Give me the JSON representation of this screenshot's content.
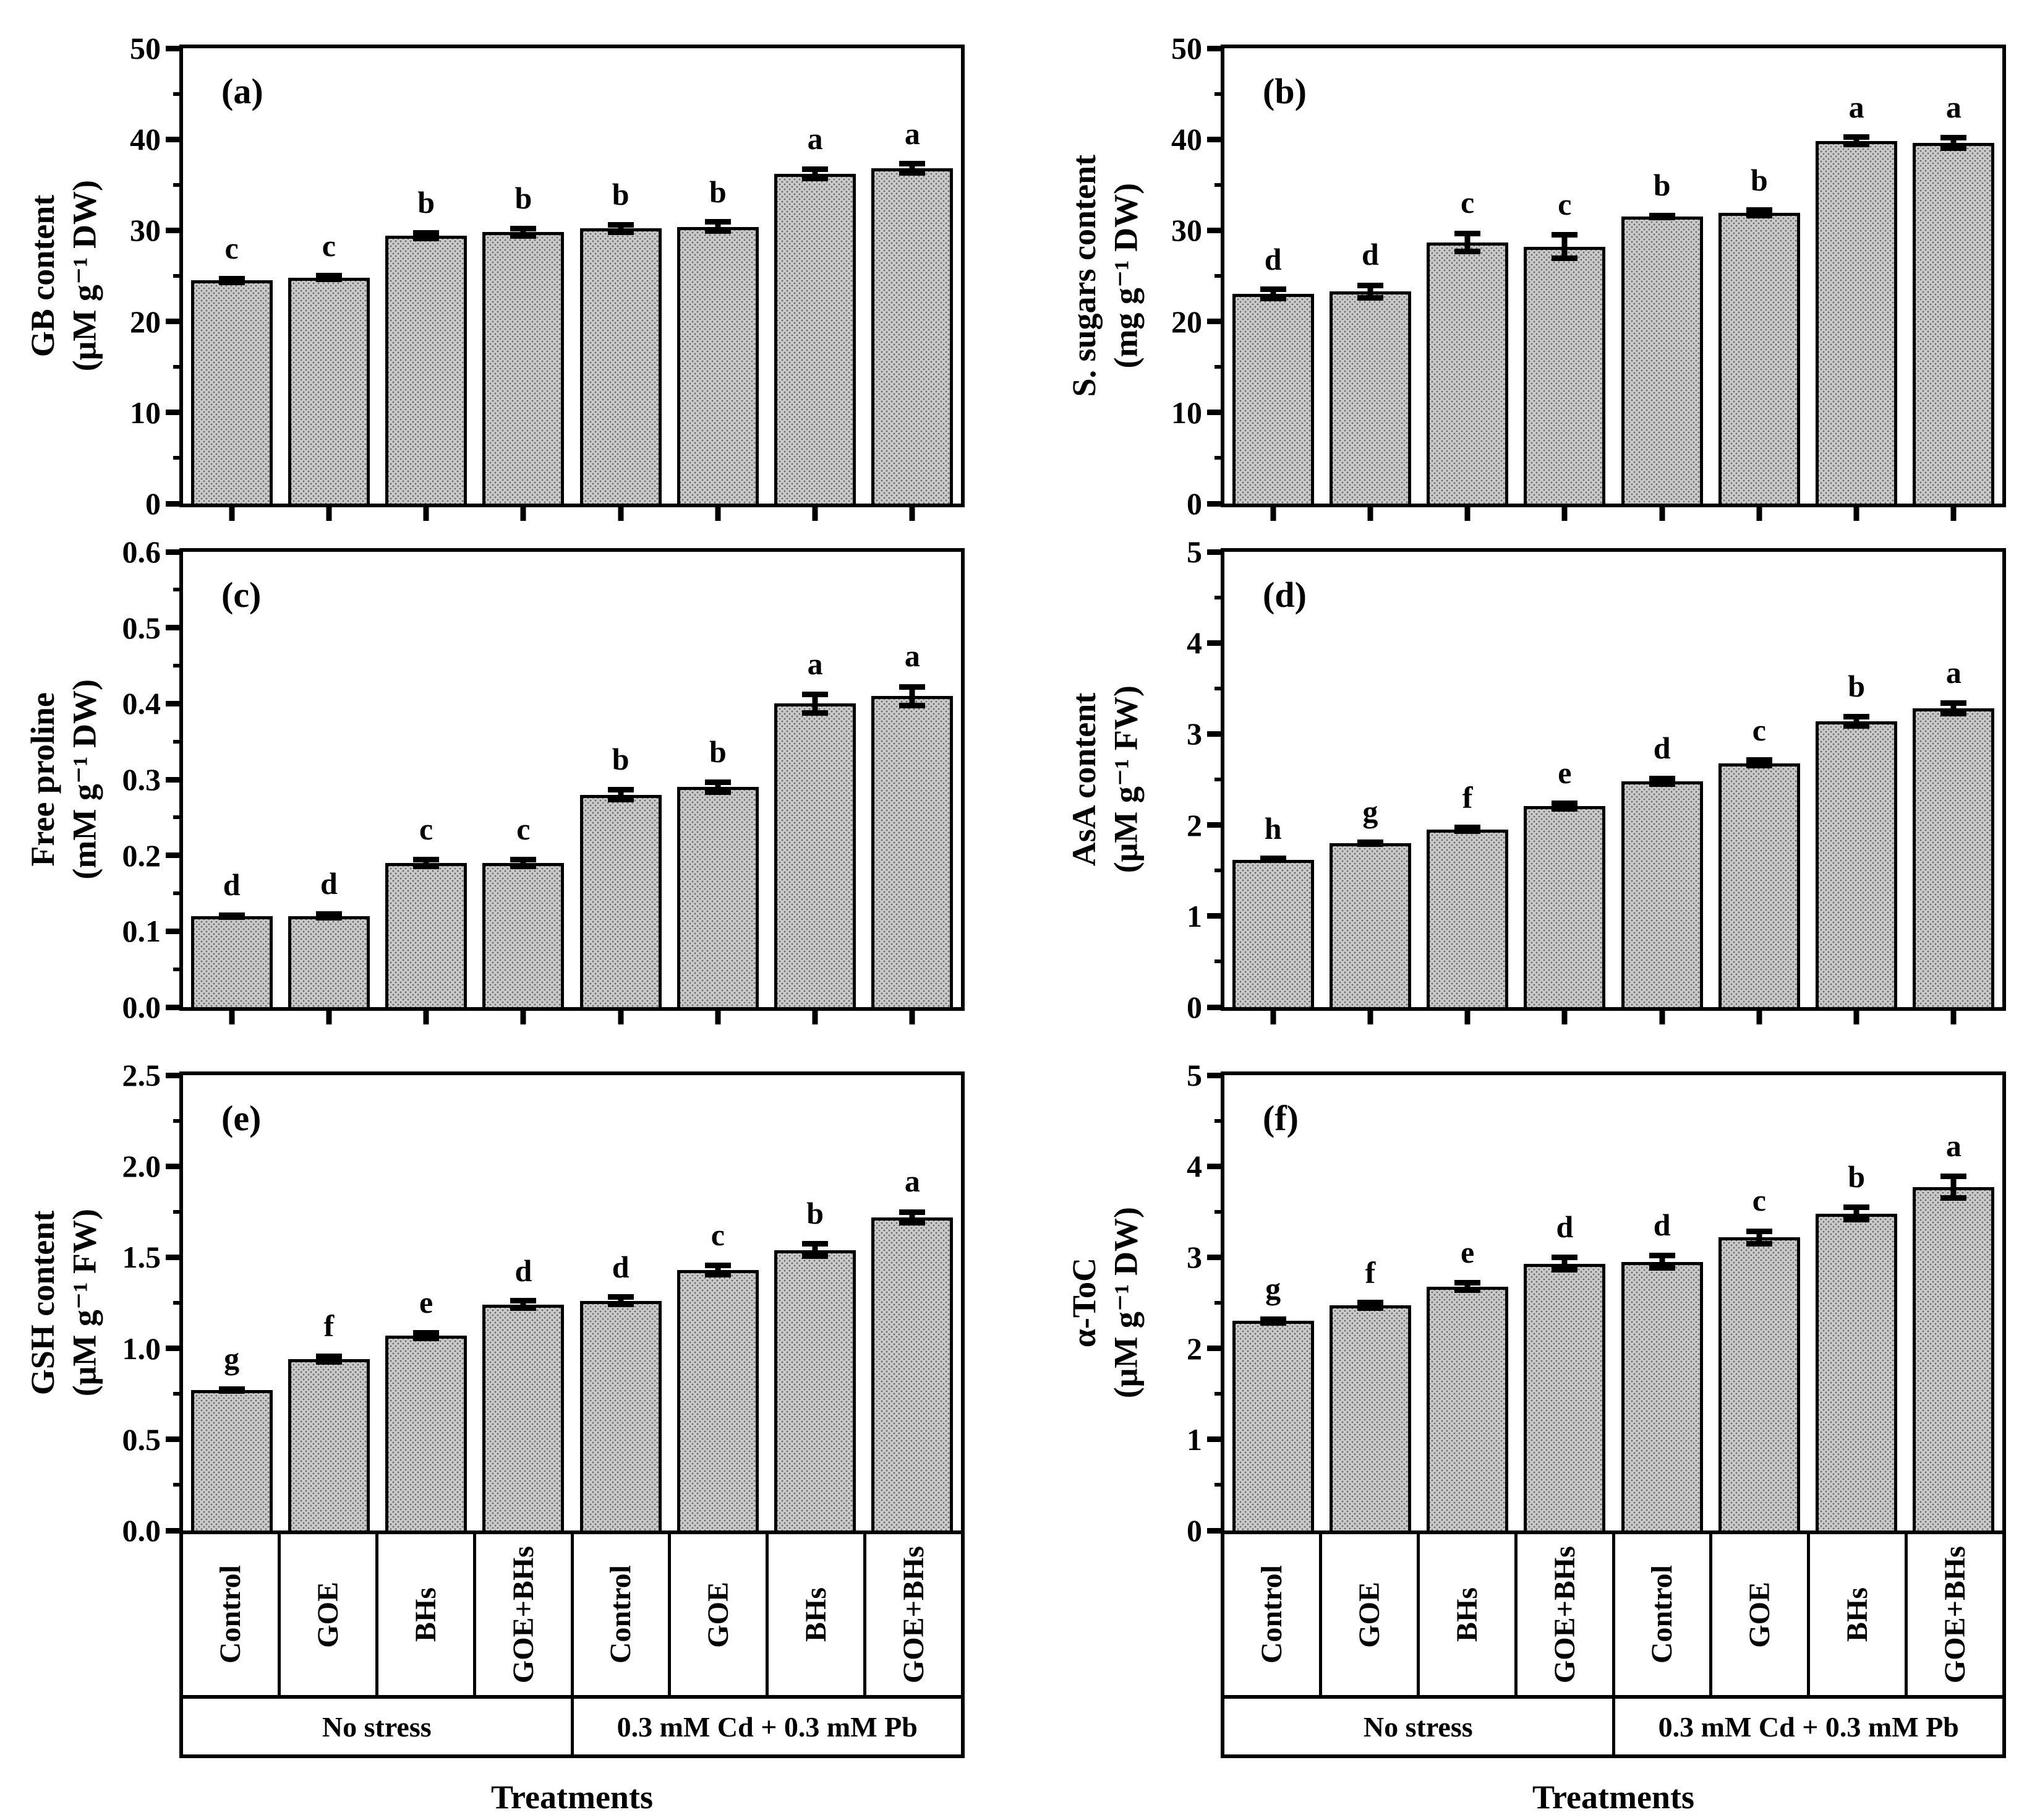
{
  "figure": {
    "x_axis_title": "Treatments",
    "group_labels": [
      "No stress",
      "0.3 mM Cd + 0.3 mM Pb"
    ],
    "treatment_labels": [
      "Control",
      "GOE",
      "BHs",
      "GOE+BHs",
      "Control",
      "GOE",
      "BHs",
      "GOE+BHs"
    ],
    "bar_fill_color": "#cbcbcb",
    "axis_color": "#000000"
  },
  "chart_data": [
    {
      "type": "bar",
      "panel": "(a)",
      "ylabel": "GB content",
      "yunit": "(μM g⁻¹ DW)",
      "ylim": [
        0,
        50
      ],
      "yticks": [
        "0",
        "10",
        "20",
        "30",
        "40",
        "50"
      ],
      "minor_ticks_per_interval": 1,
      "categories": [
        "Control",
        "GOE",
        "BHs",
        "GOE+BHs",
        "Control",
        "GOE",
        "BHs",
        "GOE+BHs"
      ],
      "group_of_first_four": "No stress",
      "group_of_last_four": "0.3 mM Cd + 0.3 mM Pb",
      "values": [
        24.5,
        24.8,
        29.4,
        29.8,
        30.2,
        30.4,
        36.2,
        36.8
      ],
      "errors": [
        0.5,
        0.5,
        0.6,
        0.7,
        0.7,
        0.8,
        0.8,
        0.8
      ],
      "letters": [
        "c",
        "c",
        "b",
        "b",
        "b",
        "b",
        "a",
        "a"
      ]
    },
    {
      "type": "bar",
      "panel": "(b)",
      "ylabel": "S. sugars content",
      "yunit": "(mg g⁻¹ DW)",
      "ylim": [
        0,
        50
      ],
      "yticks": [
        "0",
        "10",
        "20",
        "30",
        "40",
        "50"
      ],
      "minor_ticks_per_interval": 1,
      "categories": [
        "Control",
        "GOE",
        "BHs",
        "GOE+BHs",
        "Control",
        "GOE",
        "BHs",
        "GOE+BHs"
      ],
      "group_of_first_four": "No stress",
      "group_of_last_four": "0.3 mM Cd + 0.3 mM Pb",
      "values": [
        23.0,
        23.3,
        28.7,
        28.2,
        31.5,
        31.9,
        39.8,
        39.6
      ],
      "errors": [
        0.8,
        1.0,
        1.3,
        1.6,
        0.4,
        0.6,
        0.7,
        0.9
      ],
      "letters": [
        "d",
        "d",
        "c",
        "c",
        "b",
        "b",
        "a",
        "a"
      ]
    },
    {
      "type": "bar",
      "panel": "(c)",
      "ylabel": "Free proline",
      "yunit": "(mM g⁻¹ DW)",
      "ylim": [
        0,
        0.6
      ],
      "yticks": [
        "0.0",
        "0.1",
        "0.2",
        "0.3",
        "0.4",
        "0.5",
        "0.6"
      ],
      "minor_ticks_per_interval": 1,
      "categories": [
        "Control",
        "GOE",
        "BHs",
        "GOE+BHs",
        "Control",
        "GOE",
        "BHs",
        "GOE+BHs"
      ],
      "group_of_first_four": "No stress",
      "group_of_last_four": "0.3 mM Cd + 0.3 mM Pb",
      "values": [
        0.12,
        0.12,
        0.19,
        0.19,
        0.28,
        0.29,
        0.4,
        0.41
      ],
      "errors": [
        0.005,
        0.006,
        0.008,
        0.008,
        0.01,
        0.01,
        0.016,
        0.016
      ],
      "letters": [
        "d",
        "d",
        "c",
        "c",
        "b",
        "b",
        "a",
        "a"
      ]
    },
    {
      "type": "bar",
      "panel": "(d)",
      "ylabel": "AsA content",
      "yunit": "(μM g⁻¹ FW)",
      "ylim": [
        0,
        5
      ],
      "yticks": [
        "0",
        "1",
        "2",
        "3",
        "4",
        "5"
      ],
      "minor_ticks_per_interval": 1,
      "categories": [
        "Control",
        "GOE",
        "BHs",
        "GOE+BHs",
        "Control",
        "GOE",
        "BHs",
        "GOE+BHs"
      ],
      "group_of_first_four": "No stress",
      "group_of_last_four": "0.3 mM Cd + 0.3 mM Pb",
      "values": [
        1.62,
        1.8,
        1.95,
        2.21,
        2.48,
        2.68,
        3.14,
        3.28
      ],
      "errors": [
        0.04,
        0.04,
        0.05,
        0.06,
        0.06,
        0.06,
        0.08,
        0.09
      ],
      "letters": [
        "h",
        "g",
        "f",
        "e",
        "d",
        "c",
        "b",
        "a"
      ]
    },
    {
      "type": "bar",
      "panel": "(e)",
      "ylabel": "GSH content",
      "yunit": "(μM g⁻¹ FW)",
      "ylim": [
        0,
        2.5
      ],
      "yticks": [
        "0.0",
        "0.5",
        "1.0",
        "1.5",
        "2.0",
        "2.5"
      ],
      "minor_ticks_per_interval": 1,
      "categories": [
        "Control",
        "GOE",
        "BHs",
        "GOE+BHs",
        "Control",
        "GOE",
        "BHs",
        "GOE+BHs"
      ],
      "group_of_first_four": "No stress",
      "group_of_last_four": "0.3 mM Cd + 0.3 mM Pb",
      "values": [
        0.77,
        0.94,
        1.07,
        1.24,
        1.26,
        1.43,
        1.54,
        1.72
      ],
      "errors": [
        0.02,
        0.03,
        0.03,
        0.035,
        0.035,
        0.04,
        0.05,
        0.045
      ],
      "letters": [
        "g",
        "f",
        "e",
        "d",
        "d",
        "c",
        "b",
        "a"
      ]
    },
    {
      "type": "bar",
      "panel": "(f)",
      "ylabel": "α-ToC",
      "yunit": "(μM g⁻¹ DW)",
      "ylim": [
        0,
        5
      ],
      "yticks": [
        "0",
        "1",
        "2",
        "3",
        "4",
        "5"
      ],
      "minor_ticks_per_interval": 1,
      "categories": [
        "Control",
        "GOE",
        "BHs",
        "GOE+BHs",
        "Control",
        "GOE",
        "BHs",
        "GOE+BHs"
      ],
      "group_of_first_four": "No stress",
      "group_of_last_four": "0.3 mM Cd + 0.3 mM Pb",
      "values": [
        2.3,
        2.47,
        2.68,
        2.93,
        2.95,
        3.22,
        3.48,
        3.77
      ],
      "errors": [
        0.05,
        0.06,
        0.07,
        0.1,
        0.1,
        0.1,
        0.1,
        0.15
      ],
      "letters": [
        "g",
        "f",
        "e",
        "d",
        "d",
        "c",
        "b",
        "a"
      ]
    }
  ]
}
